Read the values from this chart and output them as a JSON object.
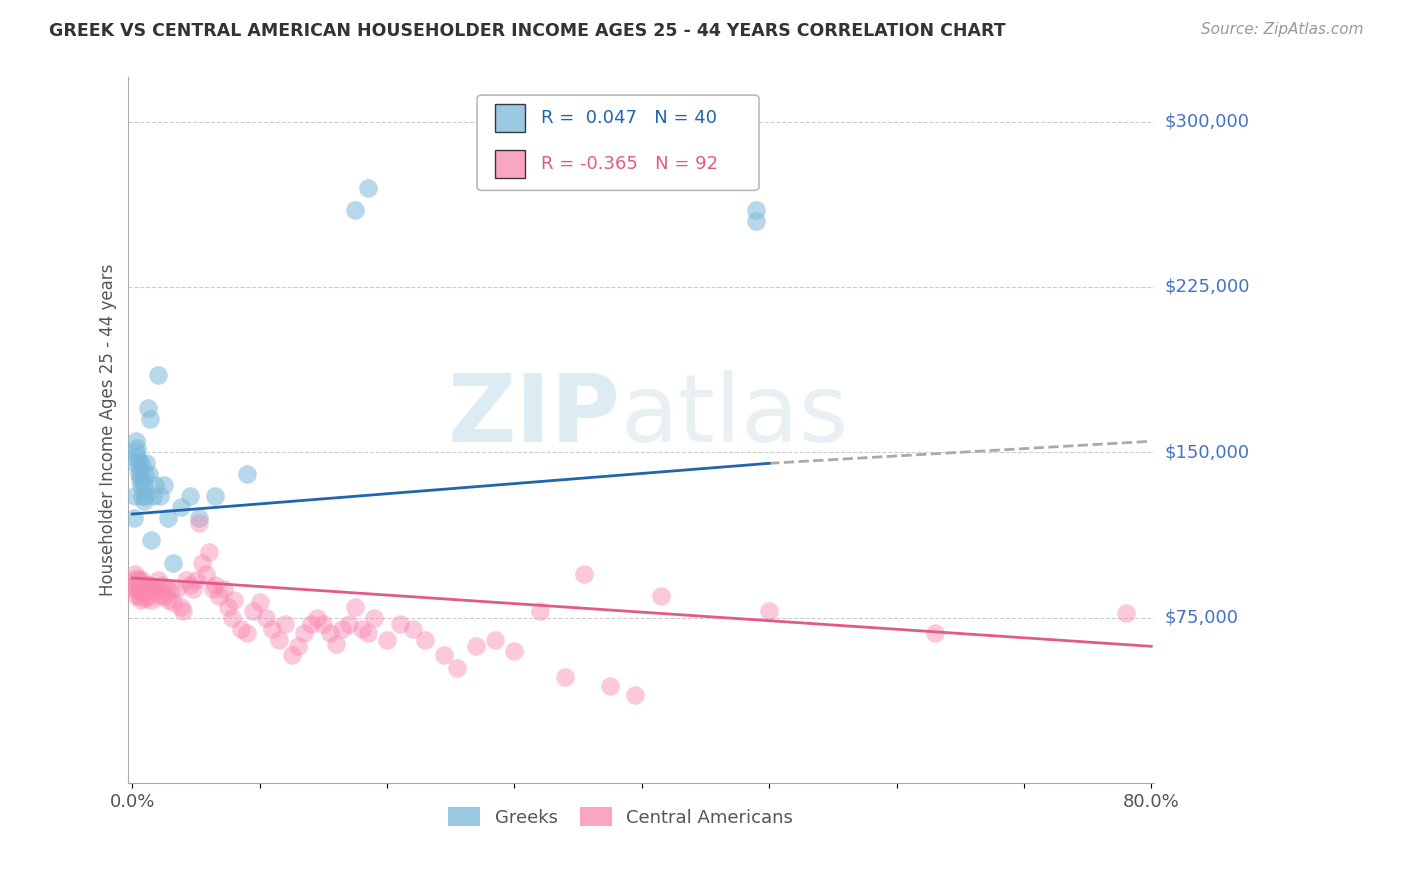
{
  "title": "GREEK VS CENTRAL AMERICAN HOUSEHOLDER INCOME AGES 25 - 44 YEARS CORRELATION CHART",
  "source": "Source: ZipAtlas.com",
  "ylabel": "Householder Income Ages 25 - 44 years",
  "yticks": [
    0,
    75000,
    150000,
    225000,
    300000
  ],
  "ytick_labels": [
    "",
    "$75,000",
    "$150,000",
    "$225,000",
    "$300,000"
  ],
  "ylim": [
    0,
    320000
  ],
  "xlim": [
    0.0,
    0.8
  ],
  "greek_color": "#7ab8d9",
  "ca_color": "#f987b0",
  "greek_line_color": "#2166ac",
  "ca_line_color": "#e05a8a",
  "dash_color": "#aaaaaa",
  "watermark_zip": "ZIP",
  "watermark_atlas": "atlas",
  "greek_line_x": [
    0.0,
    0.5
  ],
  "greek_line_y": [
    122000,
    145000
  ],
  "ca_line_x": [
    0.0,
    0.8
  ],
  "ca_line_y": [
    93000,
    62000
  ],
  "dash_line_x": [
    0.5,
    0.8
  ],
  "dash_line_y": [
    145000,
    155000
  ],
  "greek_points_x": [
    0.001,
    0.002,
    0.002,
    0.003,
    0.003,
    0.004,
    0.004,
    0.005,
    0.005,
    0.006,
    0.006,
    0.007,
    0.007,
    0.008,
    0.008,
    0.009,
    0.009,
    0.01,
    0.01,
    0.011,
    0.012,
    0.013,
    0.014,
    0.015,
    0.016,
    0.018,
    0.02,
    0.022,
    0.025,
    0.028,
    0.032,
    0.038,
    0.045,
    0.052,
    0.065,
    0.09,
    0.175,
    0.185,
    0.49,
    0.49
  ],
  "greek_points_y": [
    120000,
    130000,
    145000,
    150000,
    155000,
    148000,
    152000,
    140000,
    145000,
    138000,
    142000,
    135000,
    145000,
    130000,
    138000,
    128000,
    135000,
    140000,
    130000,
    145000,
    170000,
    140000,
    165000,
    110000,
    130000,
    135000,
    185000,
    130000,
    135000,
    120000,
    100000,
    125000,
    130000,
    120000,
    130000,
    140000,
    260000,
    270000,
    260000,
    255000
  ],
  "ca_points_x": [
    0.001,
    0.002,
    0.002,
    0.003,
    0.003,
    0.004,
    0.004,
    0.005,
    0.005,
    0.006,
    0.006,
    0.007,
    0.007,
    0.008,
    0.008,
    0.009,
    0.01,
    0.01,
    0.011,
    0.012,
    0.013,
    0.014,
    0.015,
    0.016,
    0.018,
    0.02,
    0.021,
    0.022,
    0.023,
    0.025,
    0.027,
    0.028,
    0.03,
    0.032,
    0.035,
    0.038,
    0.04,
    0.042,
    0.045,
    0.048,
    0.05,
    0.052,
    0.055,
    0.058,
    0.06,
    0.063,
    0.065,
    0.068,
    0.072,
    0.075,
    0.078,
    0.08,
    0.085,
    0.09,
    0.095,
    0.1,
    0.105,
    0.11,
    0.115,
    0.12,
    0.125,
    0.13,
    0.135,
    0.14,
    0.145,
    0.15,
    0.155,
    0.16,
    0.165,
    0.17,
    0.175,
    0.18,
    0.185,
    0.19,
    0.2,
    0.21,
    0.22,
    0.23,
    0.245,
    0.255,
    0.27,
    0.285,
    0.3,
    0.32,
    0.34,
    0.355,
    0.375,
    0.395,
    0.415,
    0.5,
    0.63,
    0.78
  ],
  "ca_points_y": [
    92000,
    88000,
    95000,
    90000,
    85000,
    93000,
    88000,
    85000,
    92000,
    90000,
    87000,
    88000,
    83000,
    92000,
    86000,
    90000,
    88000,
    84000,
    90000,
    88000,
    85000,
    90000,
    83000,
    88000,
    87000,
    92000,
    88000,
    85000,
    90000,
    85000,
    88000,
    83000,
    87000,
    82000,
    88000,
    80000,
    78000,
    92000,
    90000,
    88000,
    92000,
    118000,
    100000,
    95000,
    105000,
    88000,
    90000,
    85000,
    88000,
    80000,
    75000,
    83000,
    70000,
    68000,
    78000,
    82000,
    75000,
    70000,
    65000,
    72000,
    58000,
    62000,
    68000,
    72000,
    75000,
    72000,
    68000,
    63000,
    70000,
    72000,
    80000,
    70000,
    68000,
    75000,
    65000,
    72000,
    70000,
    65000,
    58000,
    52000,
    62000,
    65000,
    60000,
    78000,
    48000,
    95000,
    44000,
    40000,
    85000,
    78000,
    68000,
    77000
  ]
}
